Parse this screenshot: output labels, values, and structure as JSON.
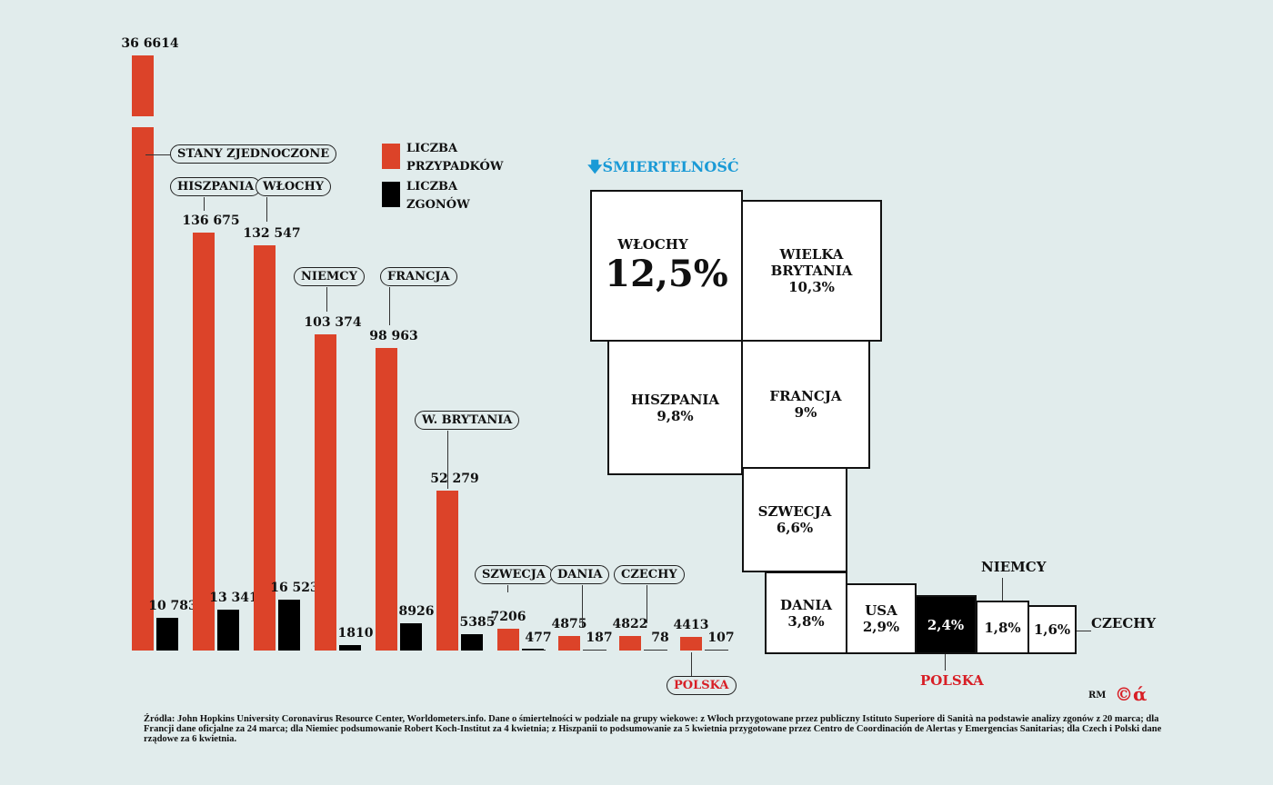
{
  "chart_data": {
    "type": "bar",
    "categories": [
      "STANY ZJEDNOCZONE",
      "HISZPANIA",
      "WŁOCHY",
      "NIEMCY",
      "FRANCJA",
      "W. BRYTANIA",
      "SZWECJA",
      "DANIA",
      "CZECHY",
      "POLSKA"
    ],
    "series": [
      {
        "name": "LICZBA PRZYPADKÓW",
        "color": "#dc4329",
        "values": [
          366614,
          136675,
          132547,
          103374,
          98963,
          52279,
          7206,
          4875,
          4822,
          4413
        ],
        "labels": [
          "36 6614",
          "136 675",
          "132 547",
          "103 374",
          "98 963",
          "52 279",
          "7206",
          "4875",
          "4822",
          "4413"
        ]
      },
      {
        "name": "LICZBA ZGONÓW",
        "color": "#000000",
        "values": [
          10783,
          13341,
          16523,
          1810,
          8926,
          5385,
          477,
          187,
          78,
          107
        ],
        "labels": [
          "10 783",
          "13 341",
          "16 523",
          "1810",
          "8926",
          "5385",
          "477",
          "187",
          "78",
          "107"
        ]
      }
    ],
    "broken_axis_first_bar": true,
    "legend": [
      "LICZBA",
      "PRZYPADKÓW",
      "LICZBA",
      "ZGONÓW"
    ]
  },
  "mortality": {
    "title": "ŚMIERTELNOŚĆ",
    "title_color": "#1a9ad6",
    "items": [
      {
        "country": "WŁOCHY",
        "value": "12,5%"
      },
      {
        "country": "WIELKA BRYTANIA",
        "value": "10,3%"
      },
      {
        "country": "HISZPANIA",
        "value": "9,8%"
      },
      {
        "country": "FRANCJA",
        "value": "9%"
      },
      {
        "country": "SZWECJA",
        "value": "6,6%"
      },
      {
        "country": "DANIA",
        "value": "3,8%"
      },
      {
        "country": "USA",
        "value": "2,9%"
      },
      {
        "country": "POLSKA",
        "value": "2,4%"
      },
      {
        "country": "NIEMCY",
        "value": "1,8%"
      },
      {
        "country": "CZECHY",
        "value": "1,6%"
      }
    ]
  },
  "credit": {
    "initials": "RM",
    "logo": "©ά"
  },
  "sources": "Źródła: John Hopkins University Coronavirus Resource Center, Worldometers.info. Dane o śmiertelności w podziale na grupy wiekowe: z Włoch przygotowane przez publiczny Istituto Superiore di Sanità na podstawie analizy zgonów z 20 marca; dla Francji dane oficjalne za 24 marca; dla Niemiec podsumowanie Robert Koch-Institut za 4 kwietnia; z Hiszpanii to podsumowanie za 5 kwietnia przygotowane przez Centro de Coordinación de Alertas y Emergencias Sanitarias; dla Czech i Polski dane rządowe za 6 kwietnia."
}
